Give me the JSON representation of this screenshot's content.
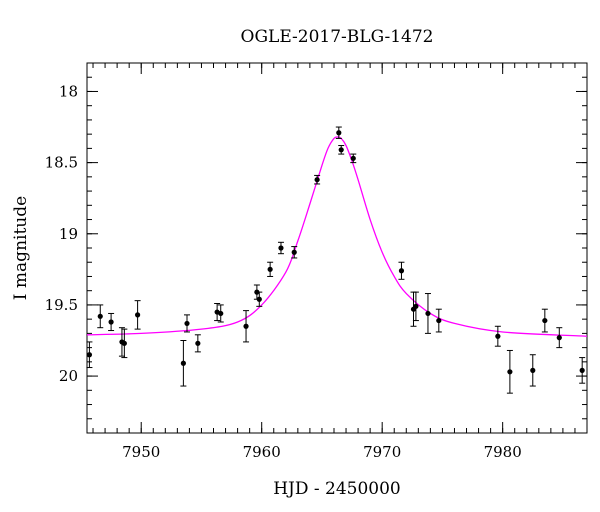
{
  "chart_data": {
    "type": "scatter",
    "title": "OGLE-2017-BLG-1472",
    "xlabel": "HJD - 2450000",
    "ylabel": "I magnitude",
    "xlim": [
      7945.5,
      7987
    ],
    "ylim": [
      20.4,
      17.8
    ],
    "y_inverted": true,
    "x_ticks": [
      7950,
      7960,
      7970,
      7980
    ],
    "x_tick_labels": [
      "7950",
      "7960",
      "7970",
      "7980"
    ],
    "y_ticks": [
      18,
      18.5,
      19,
      19.5,
      20
    ],
    "y_tick_labels": [
      "18",
      "18.5",
      "19",
      "19.5",
      "20"
    ],
    "x_minor_step": 1,
    "y_minor_step": 0.1,
    "grid": false,
    "legend": "none",
    "series": [
      {
        "kind": "points_with_errorbars",
        "color": "#000000",
        "points": [
          {
            "x": 7945.7,
            "y": 19.85,
            "err": 0.09
          },
          {
            "x": 7946.6,
            "y": 19.58,
            "err": 0.08
          },
          {
            "x": 7947.5,
            "y": 19.62,
            "err": 0.06
          },
          {
            "x": 7948.4,
            "y": 19.76,
            "err": 0.1
          },
          {
            "x": 7948.6,
            "y": 19.77,
            "err": 0.1
          },
          {
            "x": 7949.7,
            "y": 19.57,
            "err": 0.1
          },
          {
            "x": 7953.5,
            "y": 19.91,
            "err": 0.16
          },
          {
            "x": 7953.8,
            "y": 19.63,
            "err": 0.06
          },
          {
            "x": 7954.7,
            "y": 19.77,
            "err": 0.06
          },
          {
            "x": 7956.3,
            "y": 19.55,
            "err": 0.06
          },
          {
            "x": 7956.6,
            "y": 19.56,
            "err": 0.06
          },
          {
            "x": 7958.7,
            "y": 19.65,
            "err": 0.11
          },
          {
            "x": 7959.6,
            "y": 19.41,
            "err": 0.05
          },
          {
            "x": 7959.8,
            "y": 19.46,
            "err": 0.05
          },
          {
            "x": 7960.7,
            "y": 19.25,
            "err": 0.05
          },
          {
            "x": 7961.6,
            "y": 19.1,
            "err": 0.04
          },
          {
            "x": 7962.7,
            "y": 19.13,
            "err": 0.04
          },
          {
            "x": 7964.6,
            "y": 18.62,
            "err": 0.03
          },
          {
            "x": 7966.4,
            "y": 18.29,
            "err": 0.04
          },
          {
            "x": 7966.6,
            "y": 18.41,
            "err": 0.03
          },
          {
            "x": 7967.6,
            "y": 18.47,
            "err": 0.03
          },
          {
            "x": 7971.6,
            "y": 19.26,
            "err": 0.06
          },
          {
            "x": 7972.6,
            "y": 19.53,
            "err": 0.12
          },
          {
            "x": 7972.8,
            "y": 19.51,
            "err": 0.1
          },
          {
            "x": 7973.8,
            "y": 19.56,
            "err": 0.14
          },
          {
            "x": 7974.7,
            "y": 19.61,
            "err": 0.08
          },
          {
            "x": 7979.6,
            "y": 19.72,
            "err": 0.07
          },
          {
            "x": 7980.6,
            "y": 19.97,
            "err": 0.15
          },
          {
            "x": 7982.5,
            "y": 19.96,
            "err": 0.11
          },
          {
            "x": 7983.5,
            "y": 19.61,
            "err": 0.08
          },
          {
            "x": 7984.7,
            "y": 19.73,
            "err": 0.07
          },
          {
            "x": 7986.6,
            "y": 19.96,
            "err": 0.09
          }
        ]
      },
      {
        "kind": "model_curve",
        "color": "#ff00ff",
        "x": [
          7945.5,
          7950,
          7955,
          7958,
          7960,
          7962,
          7963,
          7964,
          7965,
          7965.5,
          7966,
          7966.3,
          7966.6,
          7967,
          7967.5,
          7968,
          7969,
          7970,
          7971,
          7972,
          7974,
          7976,
          7980,
          7987
        ],
        "y": [
          19.71,
          19.7,
          19.67,
          19.62,
          19.5,
          19.27,
          19.05,
          18.79,
          18.52,
          18.4,
          18.33,
          18.32,
          18.33,
          18.38,
          18.49,
          18.62,
          18.9,
          19.13,
          19.3,
          19.42,
          19.56,
          19.63,
          19.69,
          19.72
        ]
      }
    ]
  }
}
